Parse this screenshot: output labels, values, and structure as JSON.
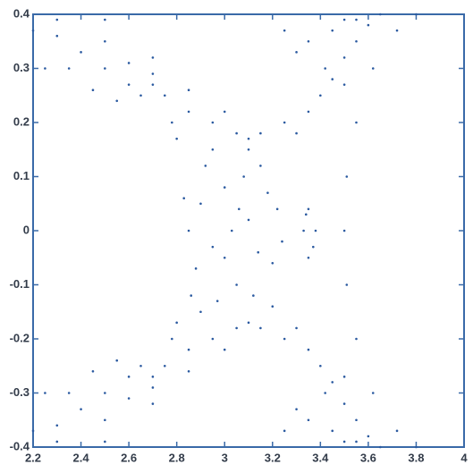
{
  "chart_data": {
    "type": "scatter",
    "color": "#2b5aa0",
    "axis_color": "#3a6aa8",
    "xlim": [
      2.2,
      4
    ],
    "ylim": [
      -0.4,
      0.4
    ],
    "xticks": [
      2.2,
      2.4,
      2.6,
      2.8,
      3,
      3.2,
      3.4,
      3.6,
      3.8,
      4
    ],
    "yticks": [
      -0.4,
      -0.3,
      -0.2,
      -0.1,
      0,
      0.1,
      0.2,
      0.3,
      0.4
    ],
    "x": [
      2.85,
      2.9,
      2.95,
      3.0,
      3.05,
      3.1,
      3.15,
      3.2,
      3.22,
      2.88,
      2.92,
      2.97,
      3.03,
      3.08,
      3.12,
      3.18,
      3.24,
      2.83,
      2.86,
      3.0,
      3.06,
      3.14,
      2.95,
      3.1,
      2.9,
      3.2,
      2.78,
      2.85,
      3.35,
      3.4,
      2.75,
      2.95,
      3.25,
      3.3,
      2.8,
      2.7,
      2.2,
      2.3,
      2.4,
      2.5,
      2.6,
      2.65,
      2.25,
      2.35,
      2.45,
      2.55,
      2.3,
      2.5,
      2.6,
      2.7,
      3.45,
      3.5,
      3.55,
      3.6,
      3.5,
      3.42,
      3.55,
      3.65,
      2.5,
      2.7,
      2.85,
      3.0,
      3.25,
      3.35,
      3.45,
      3.5,
      3.3,
      3.05,
      3.1,
      3.15,
      2.78,
      2.85,
      3.35,
      3.4,
      2.75,
      2.95,
      3.25,
      3.3,
      2.8,
      2.7,
      2.2,
      2.3,
      2.4,
      2.5,
      2.6,
      2.65,
      2.25,
      2.35,
      2.45,
      2.55,
      2.3,
      2.5,
      2.6,
      2.7,
      3.45,
      3.5,
      3.55,
      3.6,
      3.5,
      3.42,
      3.55,
      3.65,
      2.5,
      2.7,
      2.85,
      3.0,
      3.25,
      3.35,
      3.45,
      3.5,
      3.3,
      3.05,
      3.1,
      3.15,
      3.5,
      3.51,
      3.51,
      3.55,
      3.55,
      3.62,
      3.62,
      3.72,
      3.72,
      3.8,
      3.8,
      3.33,
      3.35,
      3.38,
      3.35,
      3.34,
      3.37
    ],
    "values": [
      0,
      0.05,
      -0.03,
      0.08,
      -0.1,
      0.02,
      0.12,
      -0.06,
      0.04,
      -0.07,
      0.12,
      -0.13,
      0,
      0.1,
      -0.12,
      0.07,
      -0.02,
      0.06,
      -0.12,
      -0.05,
      0.04,
      -0.04,
      0.15,
      0.15,
      -0.15,
      -0.14,
      0.2,
      0.22,
      0.22,
      0.25,
      0.25,
      0.2,
      0.2,
      0.18,
      0.17,
      0.27,
      0.37,
      0.36,
      0.33,
      0.3,
      0.27,
      0.25,
      0.3,
      0.3,
      0.26,
      0.24,
      0.39,
      0.35,
      0.31,
      0.29,
      0.28,
      0.32,
      0.35,
      0.38,
      0.27,
      0.3,
      0.39,
      0.4,
      0.39,
      0.32,
      0.26,
      0.22,
      0.37,
      0.35,
      0.37,
      0.39,
      0.33,
      0.18,
      0.17,
      0.18,
      -0.2,
      -0.22,
      -0.22,
      -0.25,
      -0.25,
      -0.2,
      -0.2,
      -0.18,
      -0.17,
      -0.27,
      -0.37,
      -0.36,
      -0.33,
      -0.3,
      -0.27,
      -0.25,
      -0.3,
      -0.3,
      -0.26,
      -0.24,
      -0.39,
      -0.35,
      -0.31,
      -0.29,
      -0.28,
      -0.32,
      -0.35,
      -0.38,
      -0.27,
      -0.3,
      -0.39,
      -0.4,
      -0.39,
      -0.32,
      -0.26,
      -0.22,
      -0.37,
      -0.35,
      -0.37,
      -0.39,
      -0.33,
      -0.18,
      -0.17,
      -0.18,
      0,
      0.1,
      -0.1,
      0.2,
      -0.2,
      0.3,
      -0.3,
      0.37,
      -0.37,
      0.4,
      -0.4,
      0,
      0.04,
      0,
      -0.05,
      0.03,
      -0.03
    ]
  }
}
